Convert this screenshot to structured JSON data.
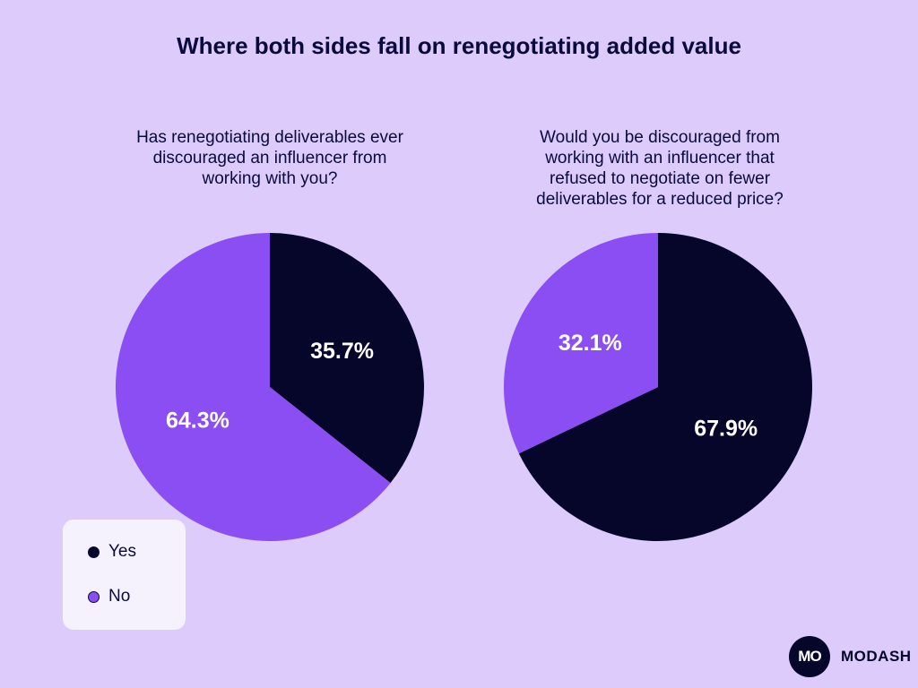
{
  "title": "Where both sides fall on renegotiating added value",
  "colors": {
    "yes": "#06062b",
    "no": "#8b4ef2",
    "background": "#dccbfb"
  },
  "legend": {
    "yes_label": "Yes",
    "no_label": "No"
  },
  "brand": {
    "logo_text": "MO",
    "name": "MODASH"
  },
  "chart_data": [
    {
      "type": "pie",
      "title": "Has renegotiating deliverables ever discouraged an influencer from working with you?",
      "slices": [
        {
          "label": "Yes",
          "value": 35.7,
          "display": "35.7%"
        },
        {
          "label": "No",
          "value": 64.3,
          "display": "64.3%"
        }
      ]
    },
    {
      "type": "pie",
      "title": "Would you be discouraged from working with an influencer that refused to negotiate on fewer deliverables for a reduced price?",
      "slices": [
        {
          "label": "Yes",
          "value": 67.9,
          "display": "67.9%"
        },
        {
          "label": "No",
          "value": 32.1,
          "display": "32.1%"
        }
      ]
    }
  ]
}
